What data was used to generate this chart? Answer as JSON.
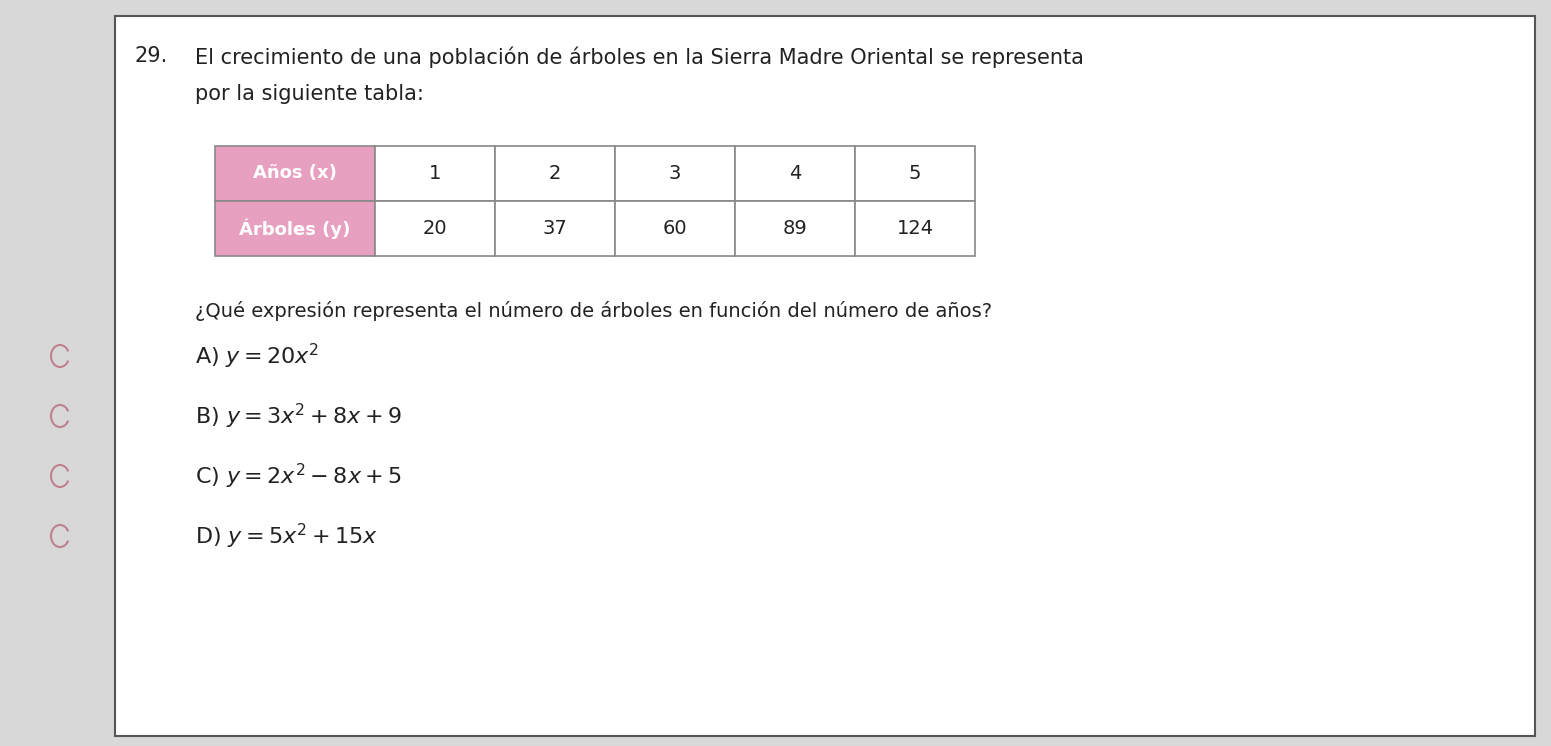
{
  "question_number": "29.",
  "question_text_line1": "El crecimiento de una población de árboles en la Sierra Madre Oriental se representa",
  "question_text_line2": "por la siguiente tabla:",
  "table": {
    "header_label1": "Años (x)",
    "header_label2": "Árboles (y)",
    "x_values": [
      "1",
      "2",
      "3",
      "4",
      "5"
    ],
    "y_values": [
      "20",
      "37",
      "60",
      "89",
      "124"
    ],
    "header_bg_color": "#e8a0c0",
    "border_color": "#888888"
  },
  "sub_question": "¿Qué expresión representa el número de árboles en función del número de años?",
  "options": [
    {
      "label": "A) ",
      "formula": "$y = 20x^2$"
    },
    {
      "label": "B) ",
      "formula": "$y = 3x^2 + 8x + 9$"
    },
    {
      "label": "C) ",
      "formula": "$y = 2x^2 - 8x + 5$"
    },
    {
      "label": "D) ",
      "formula": "$y = 5x^2 + 15x$"
    }
  ],
  "bg_color": "#d8d8d8",
  "box_bg_color": "#ffffff",
  "radio_color": "#c08090",
  "text_color": "#222222",
  "font_size_question": 15,
  "font_size_table_header": 13,
  "font_size_table_data": 14,
  "font_size_subq": 14,
  "font_size_options": 16
}
